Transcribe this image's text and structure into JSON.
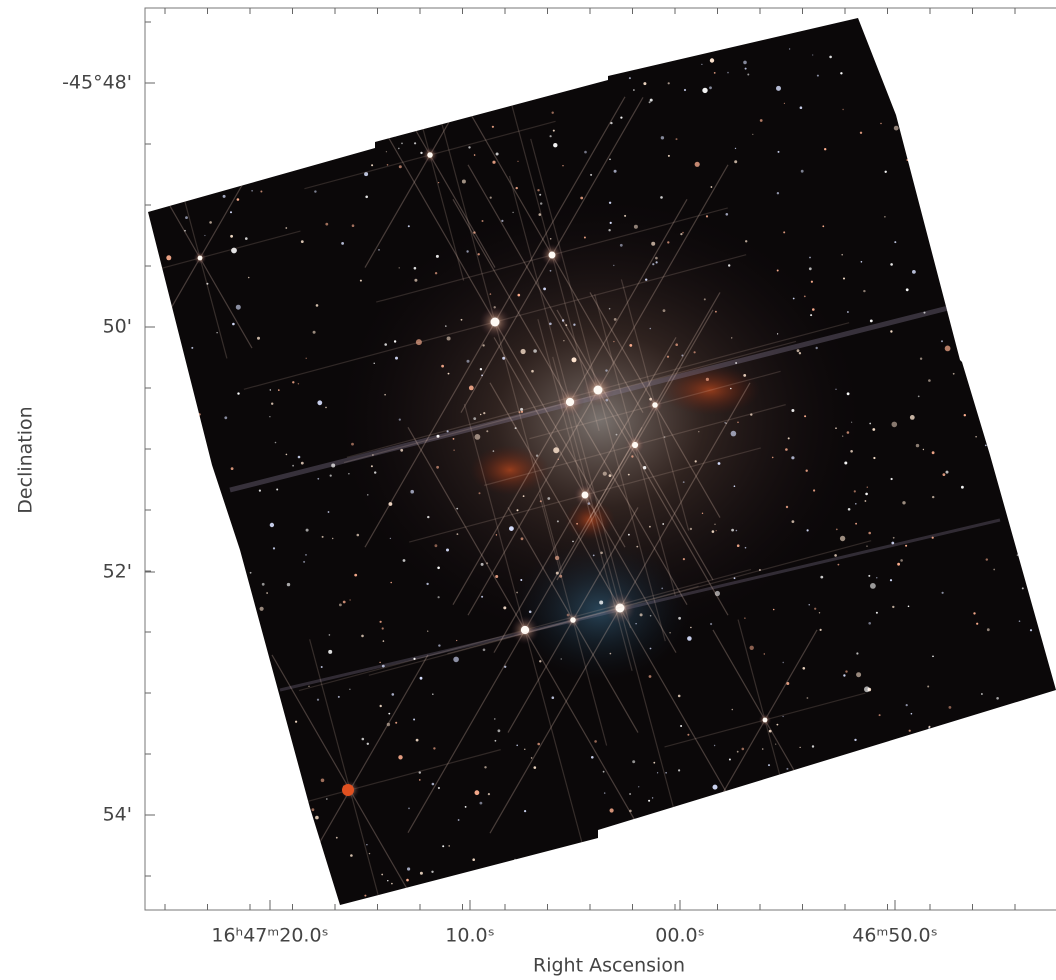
{
  "chart_data": {
    "type": "image",
    "xlabel": "Right Ascension",
    "ylabel": "Declination",
    "xtick_labels": [
      "16ʰ47ᵐ20.0ˢ",
      "10.0ˢ",
      "00.0ˢ",
      "46ᵐ50.0ˢ"
    ],
    "ytick_labels": [
      "-45°48'",
      "50'",
      "52'",
      "54'"
    ]
  }
}
